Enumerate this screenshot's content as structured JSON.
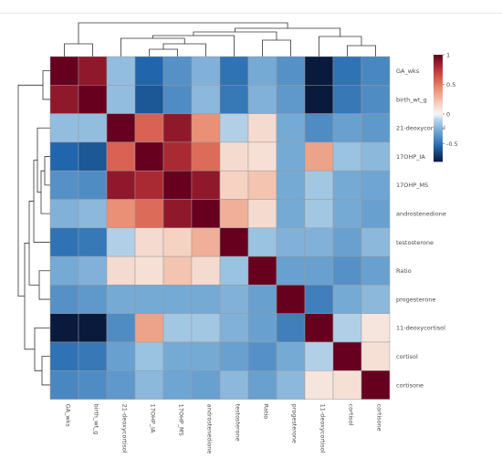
{
  "chart_data": {
    "type": "heatmap",
    "title": "",
    "xlabel": "",
    "ylabel": "",
    "row_labels": [
      "GA_wks",
      "birth_wt_g",
      "21-deoxycortisol",
      "17OHP_IA",
      "17OHP_MS",
      "androstenedione",
      "testosterone",
      "Ratio",
      "progesterone",
      "11-deoxycortisol",
      "cortisol",
      "cortisone"
    ],
    "col_labels": [
      "GA_wks",
      "birth_wt_g",
      "21-deoxycortisol",
      "17OHP_IA",
      "17OHP_MS",
      "androstenedione",
      "testosterone",
      "Ratio",
      "progesterone",
      "11-deoxycortisol",
      "cortisol",
      "cortisone"
    ],
    "values": [
      [
        1.0,
        0.88,
        -0.2,
        -0.55,
        -0.38,
        -0.25,
        -0.5,
        -0.28,
        -0.38,
        -0.9,
        -0.5,
        -0.42
      ],
      [
        0.88,
        1.0,
        -0.2,
        -0.6,
        -0.4,
        -0.22,
        -0.48,
        -0.25,
        -0.35,
        -0.95,
        -0.48,
        -0.4
      ],
      [
        -0.2,
        -0.2,
        1.0,
        0.58,
        0.88,
        0.42,
        -0.12,
        0.12,
        -0.28,
        -0.4,
        -0.32,
        -0.35
      ],
      [
        -0.55,
        -0.6,
        0.58,
        1.0,
        0.8,
        0.55,
        0.12,
        0.1,
        -0.28,
        0.35,
        -0.18,
        -0.22
      ],
      [
        -0.38,
        -0.4,
        0.88,
        0.8,
        1.0,
        0.88,
        0.16,
        0.22,
        -0.28,
        -0.16,
        -0.28,
        -0.3
      ],
      [
        -0.25,
        -0.22,
        0.42,
        0.55,
        0.88,
        1.0,
        0.3,
        0.12,
        -0.28,
        -0.16,
        -0.28,
        -0.32
      ],
      [
        -0.5,
        -0.48,
        -0.12,
        0.12,
        0.16,
        0.3,
        1.0,
        -0.18,
        -0.25,
        -0.25,
        -0.32,
        -0.22
      ],
      [
        -0.28,
        -0.25,
        0.12,
        0.1,
        0.22,
        0.12,
        -0.18,
        1.0,
        -0.32,
        -0.32,
        -0.38,
        -0.32
      ],
      [
        -0.38,
        -0.35,
        -0.28,
        -0.28,
        -0.28,
        -0.28,
        -0.25,
        -0.32,
        1.0,
        -0.45,
        -0.28,
        -0.22
      ],
      [
        -0.9,
        -0.95,
        -0.4,
        0.35,
        -0.16,
        -0.16,
        -0.25,
        -0.32,
        -0.45,
        1.0,
        -0.12,
        0.08
      ],
      [
        -0.5,
        -0.48,
        -0.32,
        -0.18,
        -0.28,
        -0.28,
        -0.32,
        -0.38,
        -0.28,
        -0.12,
        1.0,
        0.1
      ],
      [
        -0.42,
        -0.4,
        -0.35,
        -0.22,
        -0.3,
        -0.32,
        -0.22,
        -0.32,
        -0.22,
        0.08,
        0.1,
        1.0
      ]
    ],
    "color_scale": {
      "min": -0.8,
      "max": 1.0,
      "low_color": "#0a1a3c",
      "mid_color": "#f7f7f7",
      "high_color": "#67001f",
      "ticks": [
        1,
        0.5,
        0,
        -0.5
      ],
      "tick_labels": [
        "1",
        "0.5",
        "0",
        "-0.5"
      ]
    },
    "legend_placement": "top-right",
    "grid": true,
    "dendrograms": [
      "top",
      "left"
    ]
  }
}
